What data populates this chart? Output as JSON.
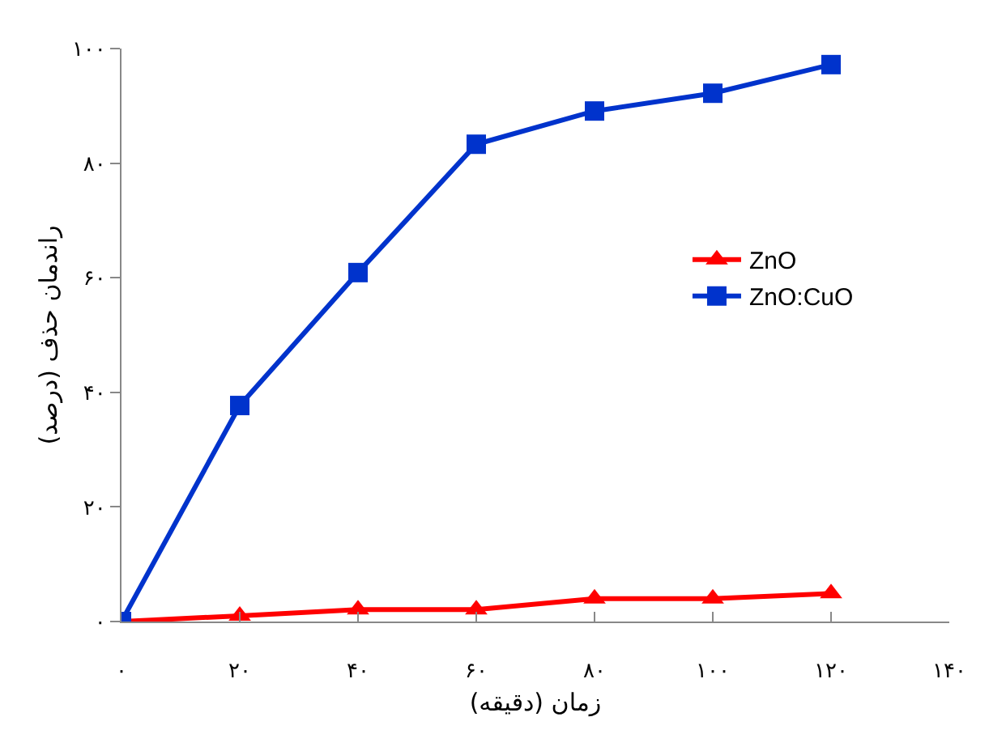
{
  "chart_data": {
    "type": "line",
    "xlabel": "زمان (دقیقه)",
    "ylabel": "راندمان حذف (درصد)",
    "x": [
      0,
      20,
      40,
      60,
      80,
      100,
      120
    ],
    "series": [
      {
        "name": "ZnO",
        "color": "#ff0000",
        "marker": "triangle",
        "values": [
          0,
          1,
          2.1,
          2.1,
          4,
          4,
          4.9
        ]
      },
      {
        "name": "ZnO:CuO",
        "color": "#0033cc",
        "marker": "square",
        "values": [
          0,
          37.7,
          60.9,
          83.3,
          89.1,
          92.2,
          97.2
        ]
      }
    ],
    "xlim": [
      0,
      140
    ],
    "ylim": [
      0,
      100
    ],
    "xticks": [
      {
        "value": 0,
        "label": "۰"
      },
      {
        "value": 20,
        "label": "۲۰"
      },
      {
        "value": 40,
        "label": "۴۰"
      },
      {
        "value": 60,
        "label": "۶۰"
      },
      {
        "value": 80,
        "label": "۸۰"
      },
      {
        "value": 100,
        "label": "۱۰۰"
      },
      {
        "value": 120,
        "label": "۱۲۰"
      },
      {
        "value": 140,
        "label": "۱۴۰"
      }
    ],
    "yticks": [
      {
        "value": 0,
        "label": "۰"
      },
      {
        "value": 20,
        "label": "۲۰"
      },
      {
        "value": 40,
        "label": "۴۰"
      },
      {
        "value": 60,
        "label": "۶۰"
      },
      {
        "value": 80,
        "label": "۸۰"
      },
      {
        "value": 100,
        "label": "۱۰۰"
      }
    ],
    "grid": false,
    "legend": "right",
    "line_style": "solid"
  }
}
